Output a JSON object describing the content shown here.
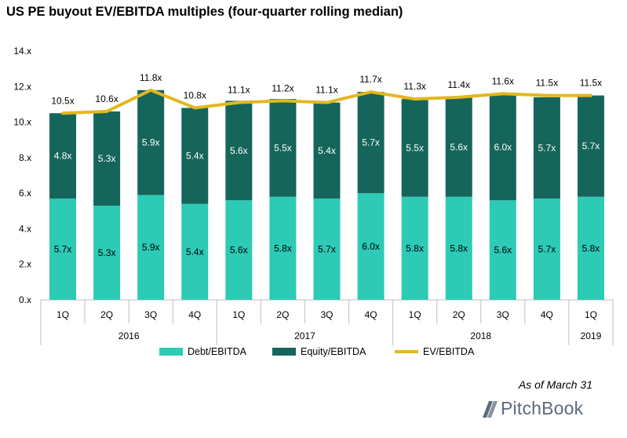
{
  "title": "US PE buyout EV/EBITDA multiples (four-quarter rolling median)",
  "as_of": "As of March 31",
  "brand": "PitchBook",
  "colors": {
    "debt": "#2dcab5",
    "equity": "#15655a",
    "ev": "#e3b71f",
    "axis": "#bfbfbf",
    "logo": "#5b6b7b"
  },
  "legend": {
    "debt": "Debt/EBITDA",
    "equity": "Equity/EBITDA",
    "ev": "EV/EBITDA"
  },
  "chart_data": {
    "type": "bar",
    "stacked": true,
    "categories": [
      "1Q",
      "2Q",
      "3Q",
      "4Q",
      "1Q",
      "2Q",
      "3Q",
      "4Q",
      "1Q",
      "2Q",
      "3Q",
      "4Q",
      "1Q"
    ],
    "year_groups": [
      {
        "label": "2016",
        "count": 4
      },
      {
        "label": "2017",
        "count": 4
      },
      {
        "label": "2018",
        "count": 4
      },
      {
        "label": "2019",
        "count": 1
      }
    ],
    "series": [
      {
        "name": "Debt/EBITDA",
        "kind": "bar",
        "values": [
          5.7,
          5.3,
          5.9,
          5.4,
          5.6,
          5.8,
          5.7,
          6.0,
          5.8,
          5.8,
          5.6,
          5.7,
          5.8
        ],
        "labels": [
          "5.7x",
          "5.3x",
          "5.9x",
          "5.4x",
          "5.6x",
          "5.8x",
          "5.7x",
          "6.0x",
          "5.8x",
          "5.8x",
          "5.6x",
          "5.7x",
          "5.8x"
        ]
      },
      {
        "name": "Equity/EBITDA",
        "kind": "bar",
        "values": [
          4.8,
          5.3,
          5.9,
          5.4,
          5.6,
          5.5,
          5.4,
          5.7,
          5.5,
          5.6,
          6.0,
          5.7,
          5.7
        ],
        "labels": [
          "4.8x",
          "5.3x",
          "5.9x",
          "5.4x",
          "5.6x",
          "5.5x",
          "5.4x",
          "5.7x",
          "5.5x",
          "5.6x",
          "6.0x",
          "5.7x",
          "5.7x"
        ]
      },
      {
        "name": "EV/EBITDA",
        "kind": "line",
        "values": [
          10.5,
          10.6,
          11.8,
          10.8,
          11.1,
          11.2,
          11.1,
          11.7,
          11.3,
          11.4,
          11.6,
          11.5,
          11.5
        ],
        "labels": [
          "10.5x",
          "10.6x",
          "11.8x",
          "10.8x",
          "11.1x",
          "11.2x",
          "11.1x",
          "11.7x",
          "11.3x",
          "11.4x",
          "11.6x",
          "11.5x",
          "11.5x"
        ]
      }
    ],
    "ylim": [
      0,
      14
    ],
    "yticks": [
      0,
      2,
      4,
      6,
      8,
      10,
      12,
      14
    ],
    "ytick_labels": [
      "0.x",
      "2.x",
      "4.x",
      "6.x",
      "8.x",
      "10.x",
      "12.x",
      "14.x"
    ],
    "grid": false,
    "legend_position": "bottom"
  }
}
